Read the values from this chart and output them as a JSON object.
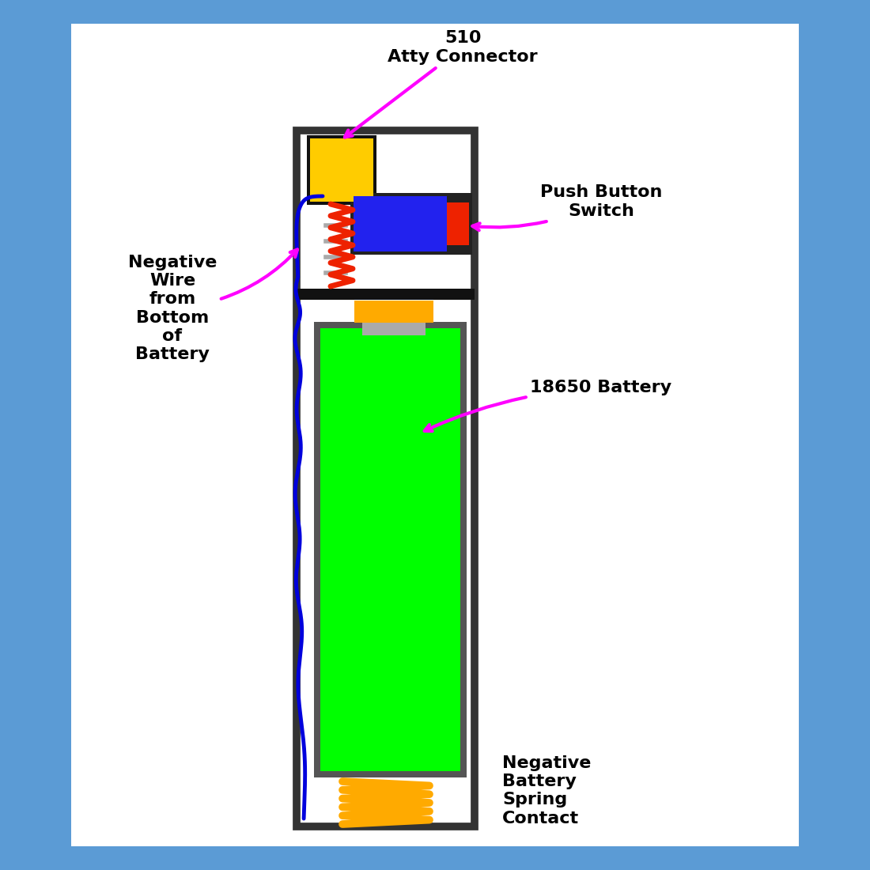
{
  "bg_outer": "#5b9bd5",
  "bg_inner": "#ffffff",
  "colors": {
    "outer_box_edge": "#333333",
    "green_battery": "#00ff00",
    "green_battery_edge": "#555555",
    "yellow_connector": "#ffcc00",
    "blue_switch": "#2222ee",
    "red_zigzag": "#ee2200",
    "orange_contact": "#ffaa00",
    "gray_cap": "#aaaaaa",
    "black_bar": "#111111",
    "magenta": "#ff00ff",
    "blue_wire": "#0000dd",
    "spring_color": "#ffaa00",
    "dark_button_housing": "#222222"
  },
  "labels": {
    "atty": "510\nAtty Connector",
    "push": "Push Button\nSwitch",
    "neg_wire": "Negative\nWire\nfrom\nBottom\nof\nBattery",
    "battery": "18650 Battery",
    "spring": "Negative\nBattery\nSpring\nContact"
  }
}
